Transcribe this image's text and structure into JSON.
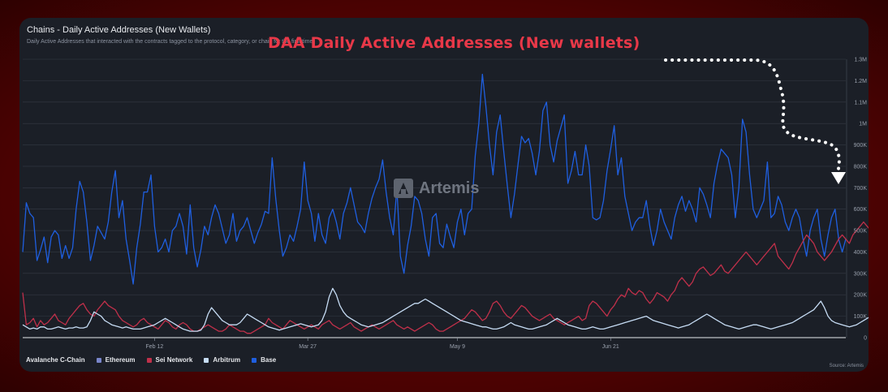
{
  "header": {
    "title": "Chains - Daily Active Addresses (New Wallets)",
    "subtitle": "Daily Active Addresses that interacted with the contracts tagged to the protocol, category, or chain for the first time"
  },
  "annotation": {
    "text": "DAA Daily Active Addresses (New wallets)",
    "color": "#e83848"
  },
  "watermark": {
    "text": "Artemis"
  },
  "source": {
    "text": "Source: Artemis"
  },
  "colors": {
    "background": "#5a0303",
    "card": "#1b1f27",
    "grid": "#353a45",
    "Base": "#1f5fe0",
    "Sei Network": "#c0304a",
    "Arbitrum": "#c6dcf4",
    "Ethereum": "#7986cb",
    "Avalanche C-Chain": "#e84142"
  },
  "legend": [
    {
      "name": "Avalanche C-Chain",
      "color": "#e84142",
      "swatch": false
    },
    {
      "name": "Ethereum",
      "color": "#7986cb",
      "swatch": true
    },
    {
      "name": "Sei Network",
      "color": "#c0304a",
      "swatch": true
    },
    {
      "name": "Arbitrum",
      "color": "#c6dcf4",
      "swatch": true
    },
    {
      "name": "Base",
      "color": "#1f5fe0",
      "swatch": true
    }
  ],
  "chart_data": {
    "type": "line",
    "title": "Chains - Daily Active Addresses (New Wallets)",
    "ylim": [
      0,
      1300000
    ],
    "y_ticks": [
      {
        "v": 0,
        "label": "0"
      },
      {
        "v": 100000,
        "label": "100K"
      },
      {
        "v": 200000,
        "label": "200K"
      },
      {
        "v": 300000,
        "label": "300K"
      },
      {
        "v": 400000,
        "label": "400K"
      },
      {
        "v": 500000,
        "label": "500K"
      },
      {
        "v": 600000,
        "label": "600K"
      },
      {
        "v": 700000,
        "label": "700K"
      },
      {
        "v": 800000,
        "label": "800K"
      },
      {
        "v": 900000,
        "label": "900K"
      },
      {
        "v": 1000000,
        "label": "1M"
      },
      {
        "v": 1100000,
        "label": "1.1M"
      },
      {
        "v": 1200000,
        "label": "1.2M"
      },
      {
        "v": 1300000,
        "label": "1.3M"
      }
    ],
    "x_ticks": [
      {
        "index": 37,
        "label": "Feb 12"
      },
      {
        "index": 80,
        "label": "Mar 27"
      },
      {
        "index": 122,
        "label": "May 9"
      },
      {
        "index": 165,
        "label": "Jun 21"
      }
    ],
    "grid": true,
    "legend_position": "bottom-left",
    "series": [
      {
        "name": "Base",
        "values": [
          400000,
          630000,
          580000,
          560000,
          360000,
          410000,
          470000,
          350000,
          470000,
          500000,
          480000,
          370000,
          430000,
          370000,
          420000,
          600000,
          730000,
          680000,
          540000,
          360000,
          430000,
          520000,
          490000,
          460000,
          540000,
          680000,
          780000,
          560000,
          640000,
          460000,
          360000,
          250000,
          420000,
          530000,
          680000,
          680000,
          760000,
          520000,
          400000,
          420000,
          460000,
          400000,
          500000,
          520000,
          580000,
          520000,
          390000,
          620000,
          420000,
          330000,
          410000,
          520000,
          480000,
          560000,
          620000,
          580000,
          510000,
          440000,
          480000,
          580000,
          450000,
          500000,
          520000,
          560000,
          500000,
          440000,
          490000,
          530000,
          590000,
          580000,
          840000,
          650000,
          500000,
          380000,
          420000,
          480000,
          450000,
          520000,
          600000,
          820000,
          640000,
          580000,
          450000,
          580000,
          480000,
          440000,
          560000,
          600000,
          540000,
          460000,
          580000,
          630000,
          700000,
          620000,
          540000,
          520000,
          490000,
          580000,
          650000,
          700000,
          740000,
          830000,
          680000,
          560000,
          480000,
          700000,
          380000,
          300000,
          430000,
          520000,
          660000,
          640000,
          580000,
          460000,
          380000,
          560000,
          580000,
          440000,
          420000,
          530000,
          470000,
          420000,
          540000,
          600000,
          480000,
          580000,
          600000,
          850000,
          1000000,
          1230000,
          1080000,
          900000,
          760000,
          960000,
          1040000,
          870000,
          710000,
          560000,
          670000,
          810000,
          940000,
          910000,
          930000,
          860000,
          760000,
          870000,
          1060000,
          1100000,
          900000,
          820000,
          920000,
          980000,
          1040000,
          720000,
          780000,
          870000,
          760000,
          760000,
          900000,
          800000,
          560000,
          550000,
          560000,
          640000,
          780000,
          880000,
          990000,
          760000,
          840000,
          660000,
          580000,
          500000,
          540000,
          560000,
          560000,
          640000,
          520000,
          430000,
          500000,
          600000,
          540000,
          500000,
          460000,
          560000,
          620000,
          660000,
          590000,
          640000,
          600000,
          540000,
          700000,
          670000,
          620000,
          560000,
          720000,
          810000,
          880000,
          860000,
          840000,
          760000,
          560000,
          700000,
          1020000,
          960000,
          760000,
          600000,
          560000,
          600000,
          640000,
          820000,
          560000,
          580000,
          660000,
          620000,
          540000,
          500000,
          560000,
          600000,
          560000,
          460000,
          380000,
          500000,
          560000,
          600000,
          460000,
          380000,
          480000,
          560000,
          600000,
          460000,
          400000,
          460000
        ]
      },
      {
        "name": "Sei Network",
        "values": [
          210000,
          60000,
          70000,
          90000,
          50000,
          80000,
          60000,
          70000,
          90000,
          110000,
          80000,
          70000,
          60000,
          90000,
          110000,
          130000,
          150000,
          160000,
          130000,
          110000,
          100000,
          130000,
          150000,
          170000,
          150000,
          140000,
          130000,
          100000,
          80000,
          70000,
          60000,
          50000,
          60000,
          80000,
          90000,
          70000,
          60000,
          50000,
          40000,
          60000,
          80000,
          70000,
          50000,
          40000,
          60000,
          70000,
          60000,
          40000,
          30000,
          30000,
          40000,
          50000,
          60000,
          50000,
          40000,
          30000,
          30000,
          40000,
          60000,
          50000,
          40000,
          30000,
          30000,
          20000,
          20000,
          30000,
          40000,
          50000,
          60000,
          90000,
          70000,
          60000,
          50000,
          40000,
          60000,
          80000,
          70000,
          60000,
          50000,
          40000,
          50000,
          60000,
          50000,
          40000,
          60000,
          70000,
          80000,
          60000,
          50000,
          40000,
          50000,
          60000,
          70000,
          50000,
          40000,
          30000,
          40000,
          50000,
          60000,
          50000,
          40000,
          50000,
          60000,
          70000,
          80000,
          60000,
          50000,
          40000,
          50000,
          40000,
          30000,
          40000,
          50000,
          60000,
          70000,
          60000,
          40000,
          30000,
          30000,
          40000,
          50000,
          60000,
          70000,
          80000,
          90000,
          110000,
          130000,
          120000,
          100000,
          80000,
          90000,
          120000,
          160000,
          170000,
          150000,
          120000,
          100000,
          90000,
          110000,
          130000,
          150000,
          140000,
          120000,
          100000,
          90000,
          80000,
          90000,
          100000,
          110000,
          90000,
          80000,
          70000,
          60000,
          70000,
          80000,
          90000,
          100000,
          80000,
          90000,
          150000,
          170000,
          160000,
          140000,
          120000,
          100000,
          130000,
          150000,
          180000,
          200000,
          190000,
          230000,
          210000,
          200000,
          220000,
          210000,
          180000,
          160000,
          180000,
          210000,
          200000,
          190000,
          170000,
          200000,
          220000,
          260000,
          280000,
          260000,
          240000,
          260000,
          300000,
          320000,
          330000,
          310000,
          290000,
          300000,
          320000,
          340000,
          310000,
          300000,
          320000,
          340000,
          360000,
          380000,
          400000,
          380000,
          360000,
          340000,
          360000,
          380000,
          400000,
          420000,
          440000,
          380000,
          360000,
          340000,
          320000,
          350000,
          390000,
          420000,
          450000,
          480000,
          460000,
          440000,
          400000,
          380000,
          360000,
          380000,
          400000,
          430000,
          460000,
          480000,
          460000,
          440000,
          480000,
          500000,
          520000,
          540000,
          520000,
          500000,
          480000,
          510000,
          540000,
          560000,
          520000,
          500000
        ]
      },
      {
        "name": "Arbitrum",
        "values": [
          60000,
          50000,
          40000,
          45000,
          40000,
          50000,
          50000,
          40000,
          40000,
          45000,
          50000,
          45000,
          40000,
          45000,
          45000,
          50000,
          45000,
          45000,
          50000,
          80000,
          120000,
          110000,
          100000,
          80000,
          70000,
          60000,
          55000,
          50000,
          45000,
          50000,
          45000,
          40000,
          40000,
          40000,
          45000,
          50000,
          55000,
          60000,
          70000,
          80000,
          90000,
          80000,
          70000,
          60000,
          50000,
          40000,
          35000,
          30000,
          30000,
          30000,
          35000,
          60000,
          110000,
          140000,
          120000,
          100000,
          80000,
          70000,
          60000,
          60000,
          60000,
          70000,
          90000,
          110000,
          100000,
          90000,
          80000,
          70000,
          60000,
          50000,
          45000,
          40000,
          35000,
          40000,
          45000,
          50000,
          55000,
          60000,
          65000,
          60000,
          55000,
          50000,
          55000,
          60000,
          80000,
          120000,
          190000,
          230000,
          200000,
          150000,
          120000,
          100000,
          90000,
          80000,
          70000,
          60000,
          55000,
          50000,
          55000,
          60000,
          65000,
          70000,
          80000,
          90000,
          100000,
          110000,
          120000,
          130000,
          140000,
          150000,
          160000,
          160000,
          170000,
          180000,
          170000,
          160000,
          150000,
          140000,
          130000,
          120000,
          110000,
          100000,
          90000,
          80000,
          75000,
          70000,
          65000,
          60000,
          55000,
          50000,
          50000,
          45000,
          40000,
          40000,
          45000,
          50000,
          60000,
          70000,
          60000,
          55000,
          50000,
          45000,
          40000,
          40000,
          45000,
          50000,
          55000,
          60000,
          70000,
          80000,
          90000,
          80000,
          70000,
          60000,
          55000,
          50000,
          45000,
          40000,
          40000,
          45000,
          50000,
          45000,
          40000,
          40000,
          45000,
          50000,
          55000,
          60000,
          65000,
          70000,
          75000,
          80000,
          85000,
          90000,
          95000,
          100000,
          90000,
          80000,
          75000,
          70000,
          65000,
          60000,
          55000,
          50000,
          45000,
          50000,
          55000,
          60000,
          70000,
          80000,
          90000,
          100000,
          110000,
          100000,
          90000,
          80000,
          70000,
          60000,
          55000,
          50000,
          45000,
          40000,
          45000,
          50000,
          55000,
          60000,
          60000,
          55000,
          50000,
          45000,
          40000,
          45000,
          50000,
          55000,
          60000,
          65000,
          70000,
          80000,
          90000,
          100000,
          110000,
          120000,
          130000,
          150000,
          170000,
          140000,
          100000,
          80000,
          70000,
          65000,
          60000,
          55000,
          50000,
          55000,
          60000,
          70000,
          80000,
          90000,
          100000,
          110000,
          100000,
          90000,
          80000,
          70000,
          60000,
          65000,
          70000,
          75000,
          80000,
          70000,
          60000
        ]
      }
    ]
  }
}
